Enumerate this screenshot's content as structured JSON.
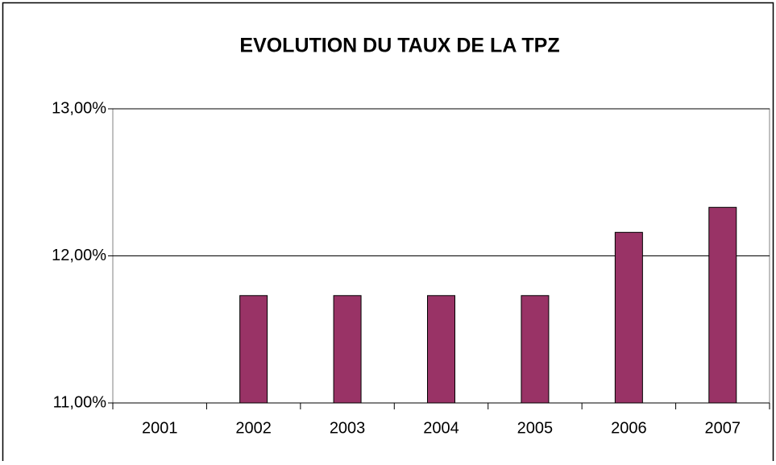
{
  "chart_data": {
    "type": "bar",
    "title": "EVOLUTION DU TAUX DE LA TPZ",
    "categories": [
      "2001",
      "2002",
      "2003",
      "2004",
      "2005",
      "2006",
      "2007"
    ],
    "values": [
      null,
      11.73,
      11.73,
      11.73,
      11.73,
      12.16,
      12.33
    ],
    "color": "#993366",
    "ylim": [
      11,
      13
    ],
    "yticks": [
      {
        "value": 11,
        "label": "11,00%"
      },
      {
        "value": 12,
        "label": "12,00%"
      },
      {
        "value": 13,
        "label": "13,00%"
      }
    ],
    "grid": true
  }
}
